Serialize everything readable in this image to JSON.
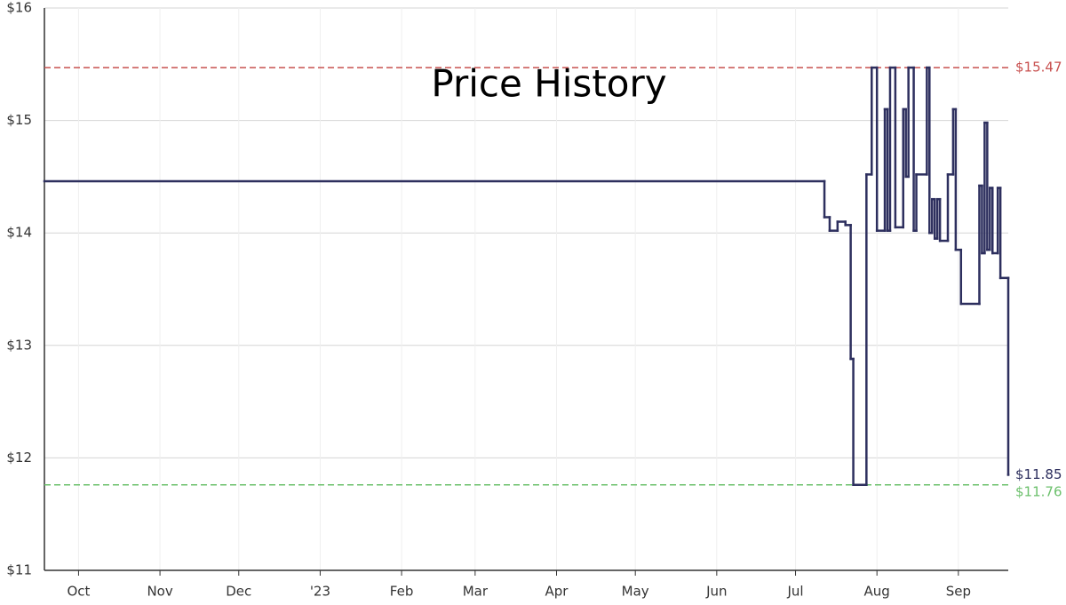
{
  "chart_data": {
    "type": "line",
    "step": true,
    "title": "Price History",
    "x": [
      0,
      297,
      299,
      302,
      305,
      307,
      308,
      313,
      315,
      317,
      320,
      321,
      322,
      324,
      327,
      328,
      329,
      331,
      332,
      336,
      337,
      338,
      339,
      340,
      341,
      344,
      346,
      347,
      349,
      356,
      357,
      358,
      359,
      360,
      361,
      363,
      364,
      367
    ],
    "series": [
      {
        "color": "#2d2f5e",
        "values": [
          14.46,
          14.14,
          14.02,
          14.1,
          14.07,
          12.88,
          11.76,
          14.52,
          15.47,
          14.02,
          15.1,
          14.02,
          15.47,
          14.05,
          15.1,
          14.5,
          15.47,
          14.02,
          14.52,
          15.47,
          14.0,
          14.3,
          13.95,
          14.3,
          13.93,
          14.52,
          15.1,
          13.85,
          13.37,
          14.42,
          13.82,
          14.98,
          13.85,
          14.4,
          13.82,
          14.4,
          13.6,
          11.85
        ],
        "value_labels": [
          null,
          null,
          null,
          null,
          null,
          null,
          null,
          null,
          null,
          null,
          null,
          null,
          null,
          null,
          null,
          null,
          null,
          null,
          null,
          null,
          null,
          null,
          null,
          null,
          null,
          null,
          null,
          null,
          null,
          null,
          null,
          null,
          null,
          null,
          null,
          null,
          null,
          "$11.85"
        ]
      }
    ],
    "reference_lines": [
      {
        "value": 15.47,
        "label": "$15.47",
        "color": "#c8504f"
      },
      {
        "value": 11.76,
        "label": "$11.76",
        "color": "#6cc06c"
      }
    ],
    "xlim": [
      0,
      367
    ],
    "xticks": [
      {
        "value": 13,
        "label": "Oct"
      },
      {
        "value": 44,
        "label": "Nov"
      },
      {
        "value": 74,
        "label": "Dec"
      },
      {
        "value": 105,
        "label": "'23"
      },
      {
        "value": 136,
        "label": "Feb"
      },
      {
        "value": 164,
        "label": "Mar"
      },
      {
        "value": 195,
        "label": "Apr"
      },
      {
        "value": 225,
        "label": "May"
      },
      {
        "value": 256,
        "label": "Jun"
      },
      {
        "value": 286,
        "label": "Jul"
      },
      {
        "value": 317,
        "label": "Aug"
      },
      {
        "value": 348,
        "label": "Sep"
      }
    ],
    "ylim": [
      11,
      16
    ],
    "yticks": [
      {
        "value": 11,
        "label": "$11"
      },
      {
        "value": 12,
        "label": "$12"
      },
      {
        "value": 13,
        "label": "$13"
      },
      {
        "value": 14,
        "label": "$14"
      },
      {
        "value": 15,
        "label": "$15"
      },
      {
        "value": 16,
        "label": "$16"
      }
    ],
    "grid": true
  }
}
